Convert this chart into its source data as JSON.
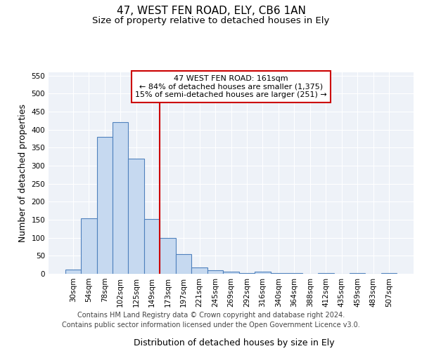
{
  "title": "47, WEST FEN ROAD, ELY, CB6 1AN",
  "subtitle": "Size of property relative to detached houses in Ely",
  "xlabel": "Distribution of detached houses by size in Ely",
  "ylabel": "Number of detached properties",
  "categories": [
    "30sqm",
    "54sqm",
    "78sqm",
    "102sqm",
    "125sqm",
    "149sqm",
    "173sqm",
    "197sqm",
    "221sqm",
    "245sqm",
    "269sqm",
    "292sqm",
    "316sqm",
    "340sqm",
    "364sqm",
    "388sqm",
    "412sqm",
    "435sqm",
    "459sqm",
    "483sqm",
    "507sqm"
  ],
  "values": [
    12,
    153,
    380,
    420,
    320,
    152,
    100,
    55,
    18,
    10,
    5,
    2,
    5,
    1,
    2,
    0,
    1,
    0,
    1,
    0,
    1
  ],
  "bar_color": "#c6d9f0",
  "bar_edge_color": "#4f81bd",
  "vline_color": "#cc0000",
  "vline_x": 5.5,
  "annotation_line1": "47 WEST FEN ROAD: 161sqm",
  "annotation_line2": "← 84% of detached houses are smaller (1,375)",
  "annotation_line3": "15% of semi-detached houses are larger (251) →",
  "annotation_box_facecolor": "#ffffff",
  "annotation_box_edgecolor": "#cc0000",
  "ylim": [
    0,
    560
  ],
  "yticks": [
    0,
    50,
    100,
    150,
    200,
    250,
    300,
    350,
    400,
    450,
    500,
    550
  ],
  "plot_bg_color": "#eef2f8",
  "figure_bg_color": "#ffffff",
  "grid_color": "#ffffff",
  "title_fontsize": 11,
  "subtitle_fontsize": 9.5,
  "axis_label_fontsize": 9,
  "tick_fontsize": 7.5,
  "annotation_fontsize": 8,
  "footer_fontsize": 7,
  "footer_line1": "Contains HM Land Registry data © Crown copyright and database right 2024.",
  "footer_line2": "Contains public sector information licensed under the Open Government Licence v3.0."
}
